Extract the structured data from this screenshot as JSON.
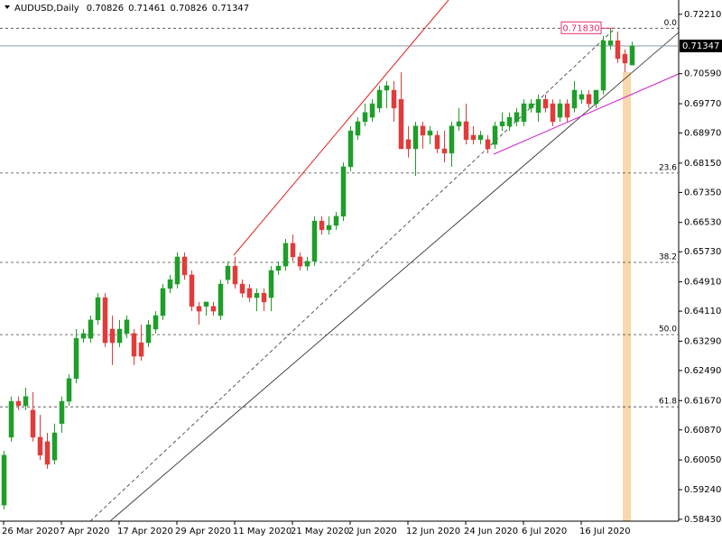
{
  "chart_data": {
    "type": "candlestick",
    "title": "AUDUSD,Daily",
    "categories": [
      "26 Mar 2020",
      null,
      null,
      null,
      null,
      null,
      null,
      null,
      "7 Apr 2020",
      null,
      null,
      null,
      null,
      null,
      null,
      null,
      "17 Apr 2020",
      null,
      null,
      null,
      null,
      null,
      null,
      null,
      "29 Apr 2020",
      null,
      null,
      null,
      null,
      null,
      null,
      null,
      "11 May 2020",
      null,
      null,
      null,
      null,
      null,
      null,
      null,
      "21 May 2020",
      null,
      null,
      null,
      null,
      null,
      null,
      null,
      "2 Jun 2020",
      null,
      null,
      null,
      null,
      null,
      null,
      null,
      "12 Jun 2020",
      null,
      null,
      null,
      null,
      null,
      null,
      null,
      "24 Jun 2020",
      null,
      null,
      null,
      null,
      null,
      null,
      null,
      "6 Jul 2020",
      null,
      null,
      null,
      null,
      null,
      null,
      null,
      "16 Jul 2020",
      null,
      null,
      null,
      null,
      null,
      null,
      null
    ],
    "open": [
      0.5882,
      0.6067,
      0.6165,
      0.6153,
      0.6141,
      0.6067,
      0.6055,
      0.6005,
      0.6104,
      0.6165,
      0.6227,
      0.6337,
      0.6337,
      0.6387,
      0.6448,
      0.6362,
      0.6325,
      0.635,
      0.635,
      0.6325,
      0.6325,
      0.6362,
      0.6399,
      0.6473,
      0.6485,
      0.6559,
      0.651,
      0.6424,
      0.6424,
      0.6424,
      0.6399,
      0.6497,
      0.6534,
      0.6485,
      0.6473,
      0.6448,
      0.646,
      0.6448,
      0.6522,
      0.6534,
      0.6596,
      0.6559,
      0.6534,
      0.6547,
      0.6657,
      0.6633,
      0.6645,
      0.667,
      0.6805,
      0.6891,
      0.6928,
      0.694,
      0.6965,
      0.7014,
      0.7014,
      0.6989,
      0.6879,
      0.6854,
      0.6916,
      0.6891,
      0.6891,
      0.6854,
      0.6842,
      0.6916,
      0.6928,
      0.6891,
      0.6879,
      0.6879,
      0.6866,
      0.6916,
      0.6916,
      0.6928,
      0.6928,
      0.6965,
      0.6953,
      0.6989,
      0.6977,
      0.694,
      0.6977,
      0.6965,
      0.6989,
      0.7002,
      0.6977,
      0.7014,
      0.7137,
      0.7149,
      0.7112,
      0.70826
    ],
    "high": [
      0.603,
      0.6178,
      0.6178,
      0.6202,
      0.619,
      0.6128,
      0.6079,
      0.6104,
      0.6178,
      0.6239,
      0.6362,
      0.6362,
      0.6399,
      0.646,
      0.646,
      0.6399,
      0.6387,
      0.6399,
      0.6362,
      0.6374,
      0.6387,
      0.6411,
      0.6485,
      0.651,
      0.6571,
      0.6571,
      0.6522,
      0.6436,
      0.6436,
      0.6436,
      0.6497,
      0.6547,
      0.6559,
      0.6497,
      0.6485,
      0.6473,
      0.6473,
      0.6534,
      0.6547,
      0.6608,
      0.662,
      0.6571,
      0.6559,
      0.667,
      0.667,
      0.667,
      0.6682,
      0.6817,
      0.6916,
      0.694,
      0.6977,
      0.6989,
      0.7026,
      0.7039,
      0.7039,
      0.7063,
      0.6916,
      0.6928,
      0.6928,
      0.6916,
      0.6903,
      0.6903,
      0.6928,
      0.6965,
      0.6977,
      0.6916,
      0.6903,
      0.6891,
      0.6928,
      0.6953,
      0.6953,
      0.6965,
      0.6989,
      0.6989,
      0.7002,
      0.7002,
      0.6989,
      0.6989,
      0.6989,
      0.7039,
      0.7014,
      0.7014,
      0.7014,
      0.7162,
      0.7183,
      0.7174,
      0.7125,
      0.71461
    ],
    "low": [
      0.587,
      0.6055,
      0.6141,
      0.6141,
      0.6055,
      0.6005,
      0.5981,
      0.5993,
      0.6079,
      0.6153,
      0.6214,
      0.6325,
      0.6325,
      0.6374,
      0.6313,
      0.6264,
      0.6313,
      0.6337,
      0.6264,
      0.6276,
      0.6313,
      0.635,
      0.6387,
      0.646,
      0.6473,
      0.6497,
      0.6411,
      0.6374,
      0.6399,
      0.6399,
      0.6387,
      0.6485,
      0.6473,
      0.6448,
      0.6436,
      0.6411,
      0.6411,
      0.6411,
      0.651,
      0.6522,
      0.6547,
      0.6522,
      0.6522,
      0.6534,
      0.662,
      0.662,
      0.6633,
      0.6657,
      0.6793,
      0.6879,
      0.6916,
      0.6928,
      0.6953,
      0.6965,
      0.6928,
      0.6854,
      0.683,
      0.678,
      0.6854,
      0.6866,
      0.6842,
      0.6817,
      0.6805,
      0.6903,
      0.6866,
      0.6866,
      0.6866,
      0.6842,
      0.6854,
      0.6903,
      0.6903,
      0.6916,
      0.6916,
      0.6953,
      0.6928,
      0.6953,
      0.6916,
      0.6928,
      0.6928,
      0.6953,
      0.6977,
      0.6965,
      0.6965,
      0.7002,
      0.7125,
      0.7088,
      0.7063,
      0.70826
    ],
    "close": [
      0.6018,
      0.6165,
      0.6153,
      0.6178,
      0.6067,
      0.6018,
      0.5993,
      0.6079,
      0.6165,
      0.6227,
      0.6337,
      0.635,
      0.6387,
      0.6448,
      0.6325,
      0.6325,
      0.6362,
      0.6387,
      0.6288,
      0.6288,
      0.6374,
      0.6399,
      0.6473,
      0.6497,
      0.6559,
      0.651,
      0.6424,
      0.6411,
      0.6436,
      0.6411,
      0.6485,
      0.6534,
      0.6485,
      0.646,
      0.6448,
      0.646,
      0.6436,
      0.6522,
      0.6534,
      0.6596,
      0.6559,
      0.6534,
      0.6547,
      0.6657,
      0.6633,
      0.6645,
      0.667,
      0.6805,
      0.6903,
      0.6928,
      0.6953,
      0.6977,
      0.7014,
      0.7026,
      0.6965,
      0.6854,
      0.6854,
      0.6916,
      0.6891,
      0.6903,
      0.6854,
      0.6842,
      0.6916,
      0.6928,
      0.6879,
      0.6879,
      0.6891,
      0.6854,
      0.6916,
      0.6928,
      0.694,
      0.6953,
      0.6977,
      0.6977,
      0.6989,
      0.6965,
      0.6928,
      0.6977,
      0.694,
      0.7014,
      0.7002,
      0.6977,
      0.7014,
      0.7149,
      0.7149,
      0.71,
      0.7088,
      0.71347
    ],
    "up_color": "#1f9e2a",
    "down_color": "#e23b3b",
    "ylim": [
      0.5838,
      0.726
    ],
    "yticks": [
      {
        "value": 0.7221,
        "label": "0.72210"
      },
      {
        "value": 0.7059,
        "label": "0.70590"
      },
      {
        "value": 0.6977,
        "label": "0.69770"
      },
      {
        "value": 0.6897,
        "label": "0.68970"
      },
      {
        "value": 0.6815,
        "label": "0.68150"
      },
      {
        "value": 0.6735,
        "label": "0.67350"
      },
      {
        "value": 0.6653,
        "label": "0.66530"
      },
      {
        "value": 0.6573,
        "label": "0.65730"
      },
      {
        "value": 0.6491,
        "label": "0.64910"
      },
      {
        "value": 0.6411,
        "label": "0.64110"
      },
      {
        "value": 0.6329,
        "label": "0.63290"
      },
      {
        "value": 0.6249,
        "label": "0.62490"
      },
      {
        "value": 0.6167,
        "label": "0.61670"
      },
      {
        "value": 0.6087,
        "label": "0.60870"
      },
      {
        "value": 0.6005,
        "label": "0.60050"
      },
      {
        "value": 0.5924,
        "label": "0.59240"
      },
      {
        "value": 0.5843,
        "label": "0.58430"
      }
    ],
    "fib_levels": [
      {
        "label": "0.0",
        "price": 0.7183
      },
      {
        "label": "23.6",
        "price": 0.6788
      },
      {
        "label": "38.2",
        "price": 0.6544
      },
      {
        "label": "50.0",
        "price": 0.6347
      },
      {
        "label": "61.8",
        "price": 0.615
      }
    ],
    "high_marker": {
      "value": 0.7183,
      "label": "0.71830"
    }
  }
}
